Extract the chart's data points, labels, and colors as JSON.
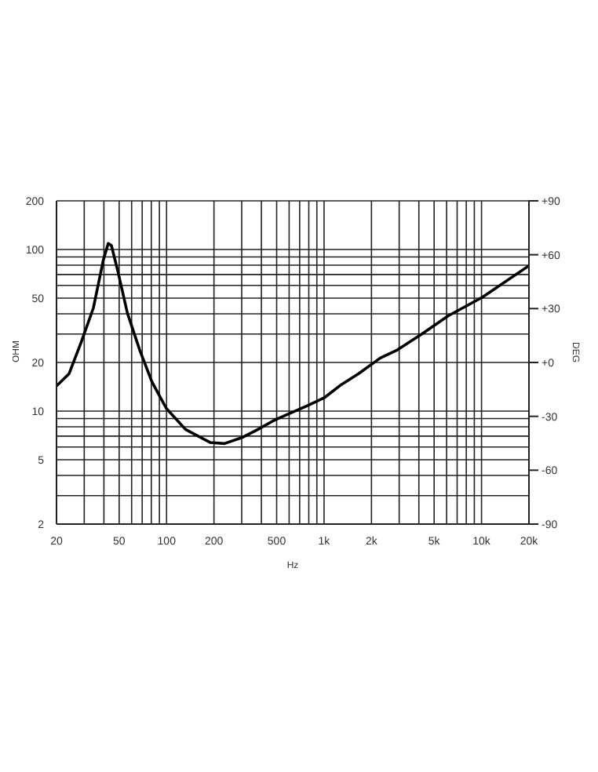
{
  "chart_data": {
    "type": "line",
    "xlabel": "Hz",
    "ylabel": "OHM",
    "y2label": "DEG",
    "log": "xy",
    "grid": true,
    "marker": "none",
    "line_style": "solid",
    "x": [
      20,
      24,
      28.7,
      34.3,
      39.6,
      42.6,
      44.6,
      49,
      56.4,
      67.5,
      80.7,
      99.6,
      132,
      189,
      233,
      306,
      380,
      470,
      511,
      784,
      1004,
      1288,
      1651,
      2273,
      2917,
      4160,
      6150,
      10100,
      20000
    ],
    "series": [
      {
        "color": "#000000",
        "values": [
          14.3,
          17,
          26.7,
          43.5,
          85.5,
          109,
          106,
          73.6,
          40.4,
          23.9,
          15.2,
          10.4,
          7.7,
          6.4,
          6.3,
          6.9,
          7.7,
          8.65,
          9,
          10.8,
          12.1,
          14.6,
          17,
          21.3,
          23.9,
          29.9,
          38.9,
          50.6,
          79.4
        ]
      }
    ],
    "xlim": [
      20,
      20000
    ],
    "xticks": [
      20,
      {
        "value": 30,
        "label": null
      },
      {
        "value": 40,
        "label": null
      },
      50,
      {
        "value": 60,
        "label": null
      },
      {
        "value": 70,
        "label": null
      },
      {
        "value": 80,
        "label": null
      },
      {
        "value": 90,
        "label": null
      },
      100,
      200,
      {
        "value": 300,
        "label": null
      },
      {
        "value": 400,
        "label": null
      },
      500,
      {
        "value": 600,
        "label": null
      },
      {
        "value": 700,
        "label": null
      },
      {
        "value": 800,
        "label": null
      },
      {
        "value": 900,
        "label": null
      },
      {
        "value": 1000,
        "label": "1k"
      },
      {
        "value": 2000,
        "label": "2k"
      },
      {
        "value": 3000,
        "label": null
      },
      {
        "value": 4000,
        "label": null
      },
      {
        "value": 5000,
        "label": "5k"
      },
      {
        "value": 6000,
        "label": null
      },
      {
        "value": 7000,
        "label": null
      },
      {
        "value": 8000,
        "label": null
      },
      {
        "value": 9000,
        "label": null
      },
      {
        "value": 10000,
        "label": "10k"
      },
      {
        "value": 20000,
        "label": "20k"
      }
    ],
    "ylim": [
      2,
      200
    ],
    "yticks": [
      2,
      {
        "value": 3,
        "label": null
      },
      {
        "value": 4,
        "label": null
      },
      5,
      {
        "value": 6,
        "label": null
      },
      {
        "value": 7,
        "label": null
      },
      {
        "value": 8,
        "label": null
      },
      {
        "value": 9,
        "label": null
      },
      10,
      20,
      {
        "value": 30,
        "label": null
      },
      {
        "value": 40,
        "label": null
      },
      50,
      {
        "value": 60,
        "label": null
      },
      {
        "value": 70,
        "label": null
      },
      {
        "value": 80,
        "label": null
      },
      {
        "value": 90,
        "label": null
      },
      100,
      200
    ],
    "y2lim": [
      -90,
      90
    ],
    "y2ticks": [
      {
        "value": 90,
        "label": "+90"
      },
      {
        "value": 60,
        "label": "+60"
      },
      {
        "value": 30,
        "label": "+30"
      },
      {
        "value": 0,
        "label": "+0"
      },
      -30,
      -60,
      -90
    ]
  }
}
